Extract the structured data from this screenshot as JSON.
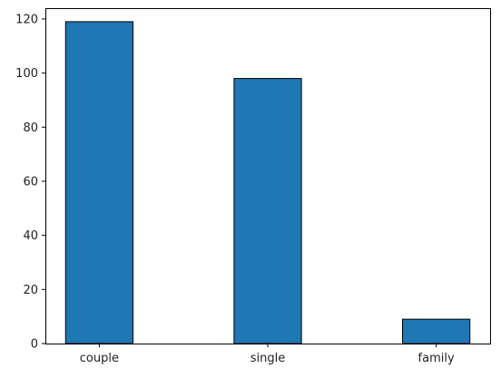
{
  "chart_data": {
    "type": "bar",
    "title": "",
    "xlabel": "",
    "ylabel": "",
    "categories": [
      "couple",
      "single",
      "family"
    ],
    "values": [
      119,
      98,
      9
    ],
    "ylim": [
      0,
      124
    ],
    "yticks": [
      0,
      20,
      40,
      60,
      80,
      100,
      120
    ],
    "bar_color": "#1f77b4",
    "edge_color": "#000000",
    "grid": false
  }
}
